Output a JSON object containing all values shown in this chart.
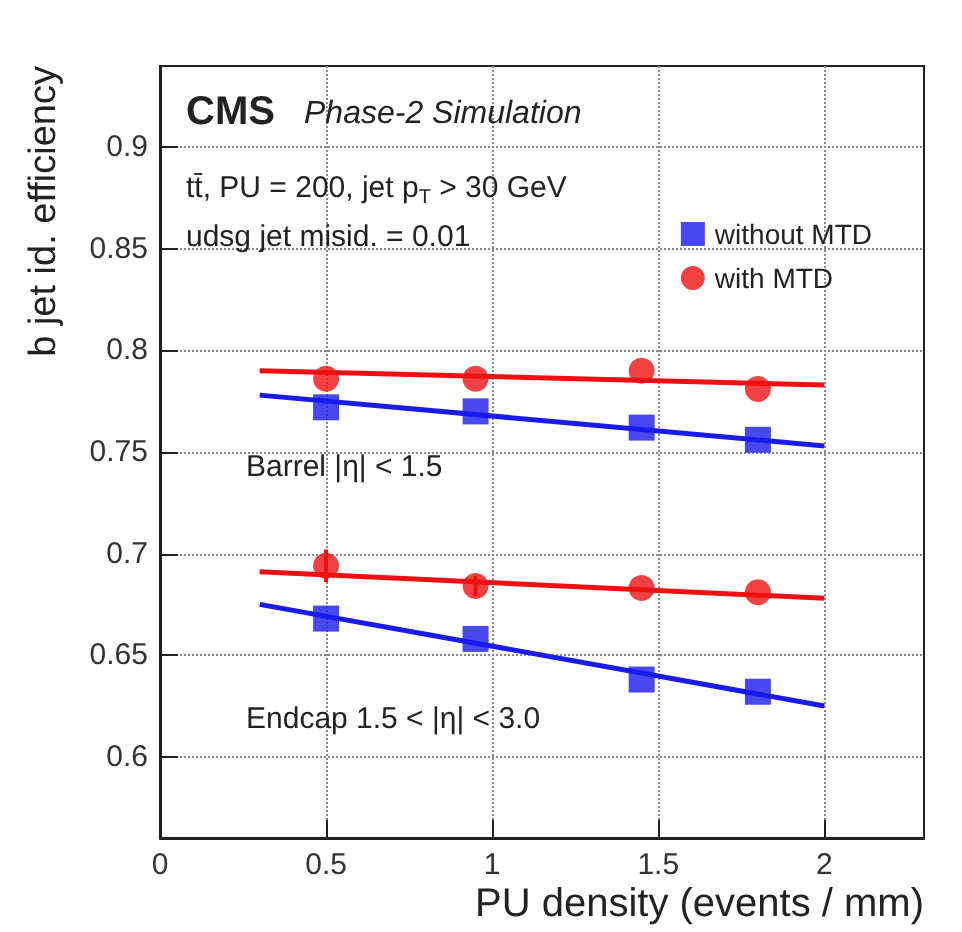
{
  "chart_data": {
    "type": "scatter",
    "xlabel": "PU density (events / mm)",
    "ylabel": "b jet id. efficiency",
    "annotations": [
      "CMS",
      "Phase-2 Simulation",
      "tt̄, PU = 200, jet p$_{T}$ > 30 GeV",
      "udsg jet misid. = 0.01",
      "Barrel |η| < 1.5",
      "Endcap 1.5 < |η| < 3.0"
    ],
    "xlim": [
      0,
      2.3
    ],
    "xticks": [
      0,
      0.5,
      1,
      1.5,
      2
    ],
    "ylim": [
      0.56,
      0.94
    ],
    "yticks": [
      0.6,
      0.65,
      0.7,
      0.75,
      0.8,
      0.85,
      0.9
    ],
    "grid": true,
    "legend": "top right",
    "series": [
      {
        "name": "without MTD",
        "marker": "square",
        "color": "#1a1aee",
        "x": [
          0.5,
          0.95,
          1.45,
          1.8
        ],
        "values": [
          0.772,
          0.77,
          0.762,
          0.756
        ]
      },
      {
        "name": "with MTD",
        "marker": "circle",
        "color": "#ee1111",
        "x": [
          0.5,
          0.95,
          1.45,
          1.8
        ],
        "values": [
          0.786,
          0.786,
          0.79,
          0.781
        ]
      },
      {
        "marker": "square",
        "color": "#1a1aee",
        "x": [
          0.5,
          0.95,
          1.45,
          1.8
        ],
        "values": [
          0.668,
          0.658,
          0.638,
          0.632
        ]
      },
      {
        "marker": "circle",
        "color": "#ee1111",
        "x": [
          0.5,
          0.95,
          1.45,
          1.8
        ],
        "values": [
          0.694,
          0.684,
          0.683,
          0.681
        ],
        "errors": [
          0.008,
          0.005,
          null,
          null
        ]
      },
      {
        "type": "line",
        "marker": "none",
        "color": "#1a1aee",
        "x": [
          0.3,
          2
        ],
        "values": [
          0.778,
          0.753
        ]
      },
      {
        "type": "line",
        "marker": "none",
        "color": "#ee1111",
        "x": [
          0.3,
          2
        ],
        "values": [
          0.79,
          0.783
        ]
      },
      {
        "type": "line",
        "marker": "none",
        "color": "#1a1aee",
        "x": [
          0.3,
          2
        ],
        "values": [
          0.675,
          0.625
        ]
      },
      {
        "type": "line",
        "marker": "none",
        "color": "#ee1111",
        "x": [
          0.3,
          2
        ],
        "values": [
          0.691,
          0.678
        ]
      }
    ]
  }
}
